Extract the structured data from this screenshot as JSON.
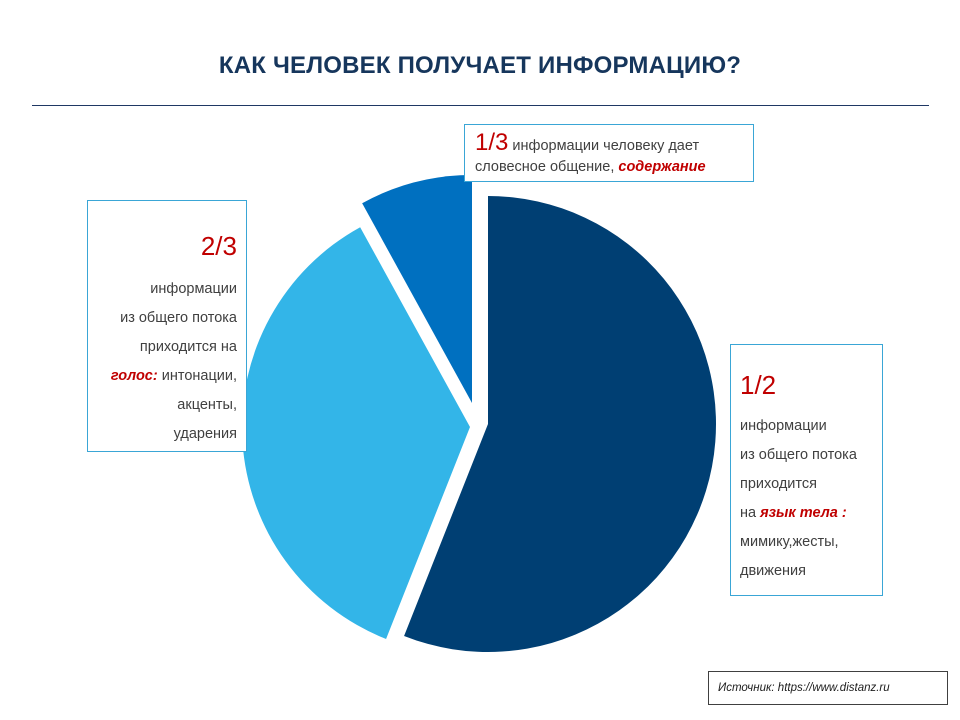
{
  "title": "КАК ЧЕЛОВЕК ПОЛУЧАЕТ ИНФОРМАЦИЮ?",
  "chart_data": {
    "type": "pie",
    "slices": [
      {
        "share": 0.56,
        "color": "#003f73"
      },
      {
        "share": 0.36,
        "color": "#33b5e8"
      },
      {
        "share": 0.08,
        "color": "#0070c0"
      }
    ]
  },
  "labels": {
    "top": {
      "fraction": "1/3",
      "text1": " информации  человеку дает",
      "text2": "словесное общение, ",
      "highlight": "содержание"
    },
    "left": {
      "fraction": "2/3",
      "line1": "информации",
      "line2": "из общего потока",
      "line3": "приходится на",
      "highlight": "голос:",
      "line4_rest": " интонации,",
      "line5": "акценты,",
      "line6": "ударения"
    },
    "right": {
      "fraction": "1/2",
      "line1": "информации",
      "line2": "из общего потока",
      "line3": "приходится",
      "line4_prefix": "на ",
      "highlight": "язык тела :",
      "line5": "мимику,жесты,",
      "line6": "движения"
    }
  },
  "source": "Источник: https://www.distanz.ru"
}
